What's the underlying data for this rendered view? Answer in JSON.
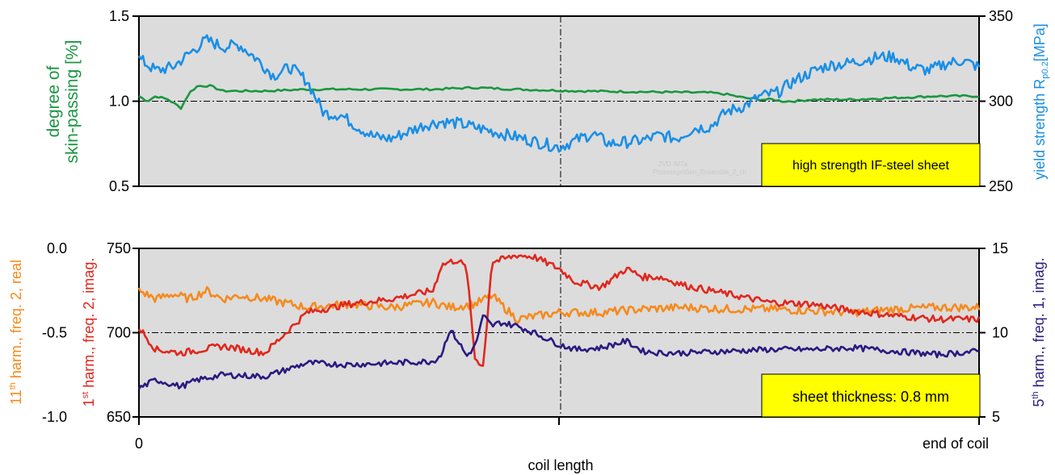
{
  "colors": {
    "skin_passing": "#1a9641",
    "yield_strength": "#1a8fe6",
    "harm11_real": "#f58a1f",
    "harm1_imag": "#e0281e",
    "harm5_imag": "#2b1a80",
    "plot_bg": "#dcdcdc",
    "label_box": "#ffff00"
  },
  "chart_data": [
    {
      "type": "line",
      "panel": "top",
      "box_label": "high strength IF-steel sheet",
      "watermark": [
        "2VD-IM7a",
        "Prozessgrößen_Ensemble_2_ch"
      ],
      "x_range": [
        0,
        1
      ],
      "grid": "dash-dot reference lines at y=1.0 and x=0.5",
      "left_axis": {
        "label_lines": [
          "degree of",
          "skin-passing [%]"
        ],
        "range": [
          0.5,
          1.5
        ],
        "ticks": [
          "0.5",
          "1.0",
          "1.5"
        ],
        "tick_values": [
          0.5,
          1.0,
          1.5
        ]
      },
      "right_axis": {
        "label_main": "yield strength R",
        "label_sub": "p0.2",
        "label_unit": "[MPa]",
        "range": [
          250,
          350
        ],
        "ticks": [
          "250",
          "300",
          "350"
        ],
        "tick_values": [
          250,
          300,
          350
        ]
      },
      "series": [
        {
          "key": "skin_passing",
          "axis": "left",
          "x": [
            0,
            0.01,
            0.02,
            0.035,
            0.05,
            0.06,
            0.07,
            0.085,
            0.1,
            0.12,
            0.15,
            0.2,
            0.25,
            0.3,
            0.35,
            0.4,
            0.45,
            0.52,
            0.68,
            0.7,
            0.72,
            0.74,
            0.755,
            0.765,
            0.78,
            0.8,
            0.85,
            0.9,
            0.95,
            1.0
          ],
          "y": [
            1.03,
            1.0,
            1.03,
            1.01,
            0.96,
            1.05,
            1.09,
            1.09,
            1.06,
            1.06,
            1.06,
            1.07,
            1.07,
            1.07,
            1.07,
            1.08,
            1.07,
            1.06,
            1.05,
            1.04,
            1.02,
            1.01,
            1.01,
            1.0,
            1.0,
            1.01,
            1.01,
            1.02,
            1.03,
            1.03
          ]
        },
        {
          "key": "yield_strength",
          "axis": "right",
          "x": [
            0,
            0.02,
            0.04,
            0.06,
            0.08,
            0.1,
            0.12,
            0.14,
            0.16,
            0.18,
            0.2,
            0.22,
            0.24,
            0.26,
            0.28,
            0.3,
            0.32,
            0.34,
            0.36,
            0.38,
            0.5,
            0.52,
            0.54,
            0.56,
            0.58,
            0.6,
            0.62,
            0.64,
            0.66,
            0.68,
            0.7,
            0.72,
            0.74,
            0.76,
            0.78,
            0.8,
            0.82,
            0.84,
            0.86,
            0.88,
            0.9,
            0.92,
            0.94,
            0.96,
            0.98,
            1.0
          ],
          "y": [
            325,
            318,
            320,
            328,
            336,
            332,
            333,
            325,
            315,
            320,
            312,
            293,
            292,
            285,
            279,
            278,
            282,
            286,
            288,
            287,
            273,
            277,
            281,
            275,
            276,
            277,
            280,
            278,
            284,
            285,
            294,
            297,
            303,
            305,
            312,
            317,
            321,
            322,
            324,
            326,
            326,
            320,
            318,
            322,
            324,
            320
          ]
        }
      ]
    },
    {
      "type": "line",
      "panel": "bottom",
      "box_label": "sheet thickness: 0.8 mm",
      "x_range": [
        0,
        1
      ],
      "grid": "dash-dot reference lines at y=-0.5 (700) and x=0.5",
      "x_axis": {
        "label": "coil length",
        "tick_labels": [
          "0",
          "end of coil"
        ],
        "tick_values": [
          0,
          1
        ]
      },
      "left_axis_outer": {
        "label_num": "11",
        "label_sup": "th",
        "label_rest": " harm., freq. 2, real",
        "range": [
          -1.0,
          0.0
        ],
        "ticks": [
          "0.0",
          "-0.5",
          "-1.0"
        ],
        "tick_values": [
          0.0,
          -0.5,
          -1.0
        ]
      },
      "left_axis_inner": {
        "label_num": "1",
        "label_sup": "st",
        "label_rest": " harm., freq. 2, imag.",
        "range": [
          650,
          750
        ],
        "ticks": [
          "750",
          "700",
          "650"
        ],
        "tick_values": [
          750,
          700,
          650
        ]
      },
      "right_axis": {
        "label_num": "5",
        "label_sup": "th",
        "label_rest": " harm., freq. 1, imag.",
        "range": [
          5,
          15
        ],
        "ticks": [
          "15",
          "10",
          "5"
        ],
        "tick_values": [
          15,
          10,
          5
        ]
      },
      "series": [
        {
          "key": "harm11_real",
          "axis": "left_outer",
          "x": [
            0,
            0.02,
            0.04,
            0.06,
            0.08,
            0.1,
            0.12,
            0.15,
            0.2,
            0.25,
            0.3,
            0.35,
            0.37,
            0.4,
            0.42,
            0.45,
            0.5,
            0.55,
            0.6,
            0.65,
            0.7,
            0.75,
            0.8,
            0.85,
            0.9,
            0.95,
            1.0
          ],
          "y": [
            -0.25,
            -0.3,
            -0.27,
            -0.3,
            -0.25,
            -0.3,
            -0.28,
            -0.3,
            -0.35,
            -0.33,
            -0.35,
            -0.32,
            -0.35,
            -0.33,
            -0.28,
            -0.42,
            -0.38,
            -0.38,
            -0.36,
            -0.35,
            -0.36,
            -0.36,
            -0.37,
            -0.38,
            -0.36,
            -0.35,
            -0.35
          ]
        },
        {
          "key": "harm1_imag",
          "axis": "left_inner",
          "x": [
            0,
            0.02,
            0.05,
            0.1,
            0.15,
            0.2,
            0.25,
            0.3,
            0.35,
            0.36,
            0.37,
            0.38,
            0.39,
            0.4,
            0.41,
            0.42,
            0.43,
            0.45,
            0.47,
            0.5,
            0.52,
            0.55,
            0.58,
            0.6,
            0.62,
            0.65,
            0.7,
            0.75,
            0.8,
            0.85,
            0.9,
            0.95,
            1.0
          ],
          "y": [
            703,
            690,
            688,
            692,
            688,
            712,
            717,
            720,
            725,
            740,
            742,
            743,
            738,
            685,
            680,
            742,
            743,
            746,
            745,
            738,
            730,
            727,
            738,
            733,
            733,
            728,
            723,
            718,
            717,
            713,
            710,
            708,
            708
          ]
        },
        {
          "key": "harm5_imag",
          "axis": "right",
          "x": [
            0,
            0.02,
            0.05,
            0.07,
            0.1,
            0.15,
            0.2,
            0.25,
            0.3,
            0.35,
            0.36,
            0.37,
            0.38,
            0.39,
            0.4,
            0.41,
            0.42,
            0.43,
            0.45,
            0.47,
            0.5,
            0.52,
            0.55,
            0.58,
            0.6,
            0.62,
            0.65,
            0.7,
            0.75,
            0.8,
            0.85,
            0.9,
            0.95,
            1.0
          ],
          "y": [
            6.7,
            7.2,
            6.8,
            7.2,
            7.5,
            7.4,
            8.2,
            8.1,
            8.2,
            8.3,
            8.7,
            10.2,
            9.5,
            8.6,
            9.2,
            11.0,
            10.4,
            10.6,
            10.4,
            10.0,
            9.3,
            9.0,
            9.1,
            9.5,
            8.9,
            8.8,
            8.8,
            8.9,
            9.0,
            9.0,
            9.1,
            8.9,
            8.7,
            8.9
          ]
        }
      ]
    }
  ]
}
